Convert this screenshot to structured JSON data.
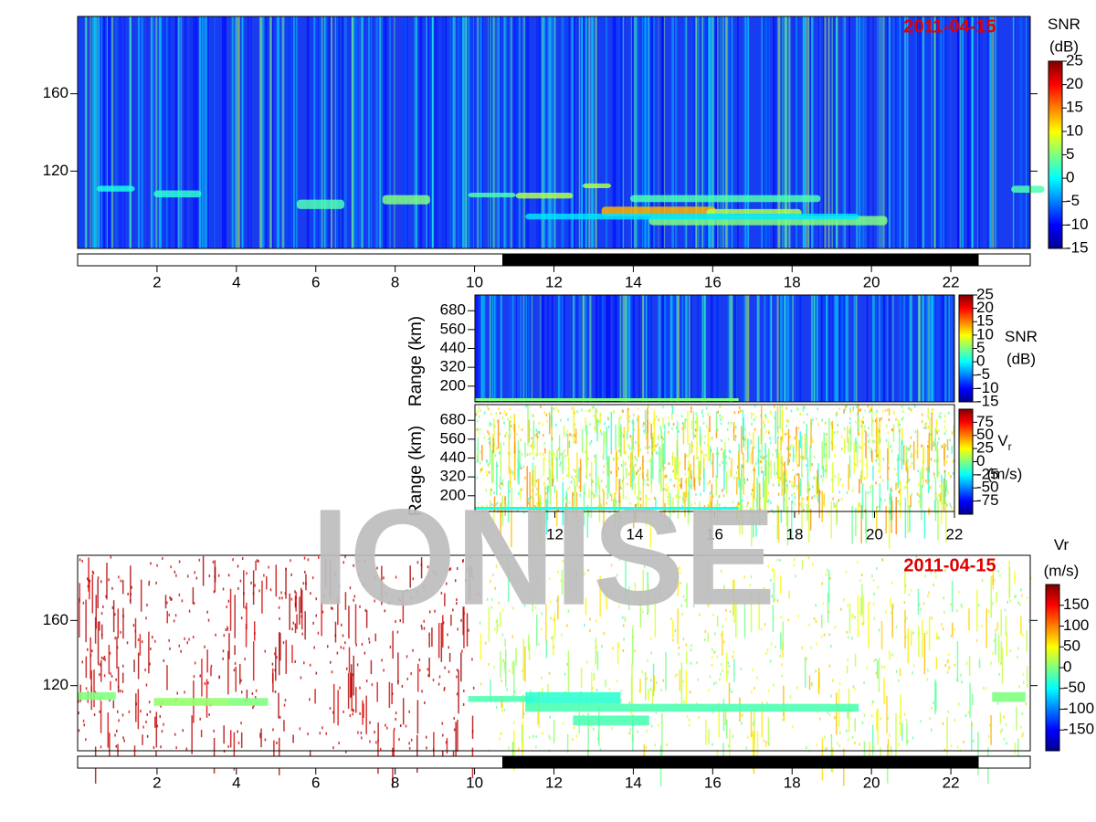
{
  "chart_data": [
    {
      "type": "heatmap",
      "annotation": "2011-04-15",
      "colorbar_title": "SNR",
      "colorbar_unit": "(dB)",
      "xlim": [
        0,
        24
      ],
      "xticks": [
        2,
        4,
        6,
        8,
        10,
        12,
        14,
        16,
        18,
        20,
        22
      ],
      "ylim": [
        80,
        200
      ],
      "yticks": [
        120,
        160
      ],
      "clim": [
        -15,
        25
      ],
      "cticks": [
        25,
        20,
        15,
        10,
        5,
        0,
        -5,
        -10,
        -15
      ],
      "night": [
        10.7,
        22.7
      ]
    },
    {
      "type": "heatmap",
      "ylabel": "Range (km)",
      "colorbar_title": "SNR",
      "colorbar_unit": "(dB)",
      "xlim": [
        10,
        22
      ],
      "ylim": [
        100,
        780
      ],
      "yticks": [
        200,
        320,
        440,
        560,
        680
      ],
      "clim": [
        -15,
        25
      ],
      "cticks": [
        25,
        20,
        15,
        10,
        5,
        0,
        -5,
        -10,
        -15
      ]
    },
    {
      "type": "heatmap",
      "ylabel": "Range (km)",
      "colorbar_title": "V",
      "colorbar_title_sub": "r",
      "colorbar_unit": "(m/s)",
      "xlim": [
        10,
        22
      ],
      "xticks": [
        12,
        14,
        16,
        18,
        20,
        22
      ],
      "ylim": [
        100,
        780
      ],
      "yticks": [
        200,
        320,
        440,
        560,
        680
      ],
      "clim": [
        -100,
        100
      ],
      "cticks": [
        75,
        50,
        25,
        0,
        -25,
        -50,
        -75
      ]
    },
    {
      "type": "heatmap",
      "annotation": "2011-04-15",
      "colorbar_title": "Vr",
      "colorbar_unit": "(m/s)",
      "xlim": [
        0,
        24
      ],
      "xticks": [
        2,
        4,
        6,
        8,
        10,
        12,
        14,
        16,
        18,
        20,
        22
      ],
      "ylim": [
        80,
        200
      ],
      "yticks": [
        120,
        160
      ],
      "clim": [
        -200,
        200
      ],
      "cticks": [
        150,
        100,
        50,
        0,
        -50,
        -100,
        -150
      ],
      "night": [
        10.7,
        22.7
      ]
    }
  ],
  "watermark": "IONISE"
}
